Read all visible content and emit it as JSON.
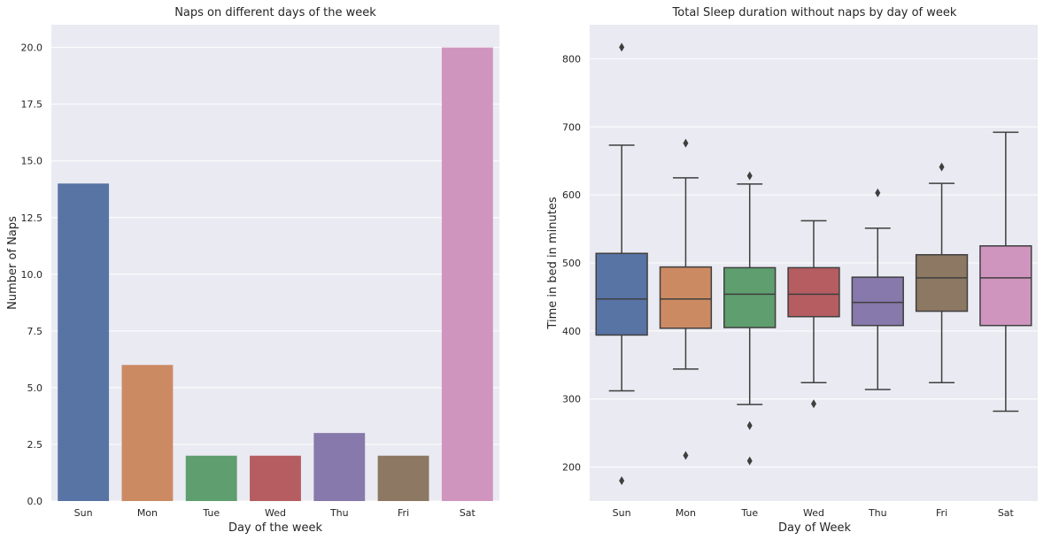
{
  "chart_data": [
    {
      "type": "bar",
      "title": "Naps on different days of the week",
      "xlabel": "Day of the week",
      "ylabel": "Number of Naps",
      "categories": [
        "Sun",
        "Mon",
        "Tue",
        "Wed",
        "Thu",
        "Fri",
        "Sat"
      ],
      "values": [
        14,
        6,
        2,
        2,
        3,
        2,
        20
      ],
      "ylim": [
        0,
        21
      ],
      "yticks": [
        "0.0",
        "2.5",
        "5.0",
        "7.5",
        "10.0",
        "12.5",
        "15.0",
        "17.5",
        "20.0"
      ],
      "colors": [
        "#5874a5",
        "#cc8a63",
        "#5f9e6e",
        "#b55d60",
        "#8779ab",
        "#8c7863",
        "#d095bf"
      ],
      "grid": true,
      "background": "#eaeaf2"
    },
    {
      "type": "box",
      "title": "Total Sleep duration without naps by day of week",
      "xlabel": "Day of Week",
      "ylabel": "Time in bed in minutes",
      "categories": [
        "Sun",
        "Mon",
        "Tue",
        "Wed",
        "Thu",
        "Fri",
        "Sat"
      ],
      "boxes": [
        {
          "whislo": 312,
          "q1": 394,
          "med": 447,
          "q3": 514,
          "whishi": 673,
          "fliers": [
            817,
            180
          ]
        },
        {
          "whislo": 344,
          "q1": 404,
          "med": 447,
          "q3": 494,
          "whishi": 625,
          "fliers": [
            676,
            217
          ]
        },
        {
          "whislo": 292,
          "q1": 405,
          "med": 454,
          "q3": 493,
          "whishi": 616,
          "fliers": [
            628,
            261,
            209
          ]
        },
        {
          "whislo": 324,
          "q1": 421,
          "med": 454,
          "q3": 493,
          "whishi": 562,
          "fliers": [
            293
          ]
        },
        {
          "whislo": 314,
          "q1": 408,
          "med": 442,
          "q3": 479,
          "whishi": 551,
          "fliers": [
            603
          ]
        },
        {
          "whislo": 324,
          "q1": 429,
          "med": 478,
          "q3": 512,
          "whishi": 617,
          "fliers": [
            641
          ]
        },
        {
          "whislo": 282,
          "q1": 408,
          "med": 478,
          "q3": 525,
          "whishi": 692,
          "fliers": []
        }
      ],
      "ylim": [
        150,
        850
      ],
      "yticks": [
        200,
        300,
        400,
        500,
        600,
        700,
        800
      ],
      "colors": [
        "#5874a5",
        "#cc8a63",
        "#5f9e6e",
        "#b55d60",
        "#8779ab",
        "#8c7863",
        "#d095bf"
      ],
      "grid": true,
      "background": "#eaeaf2"
    }
  ]
}
